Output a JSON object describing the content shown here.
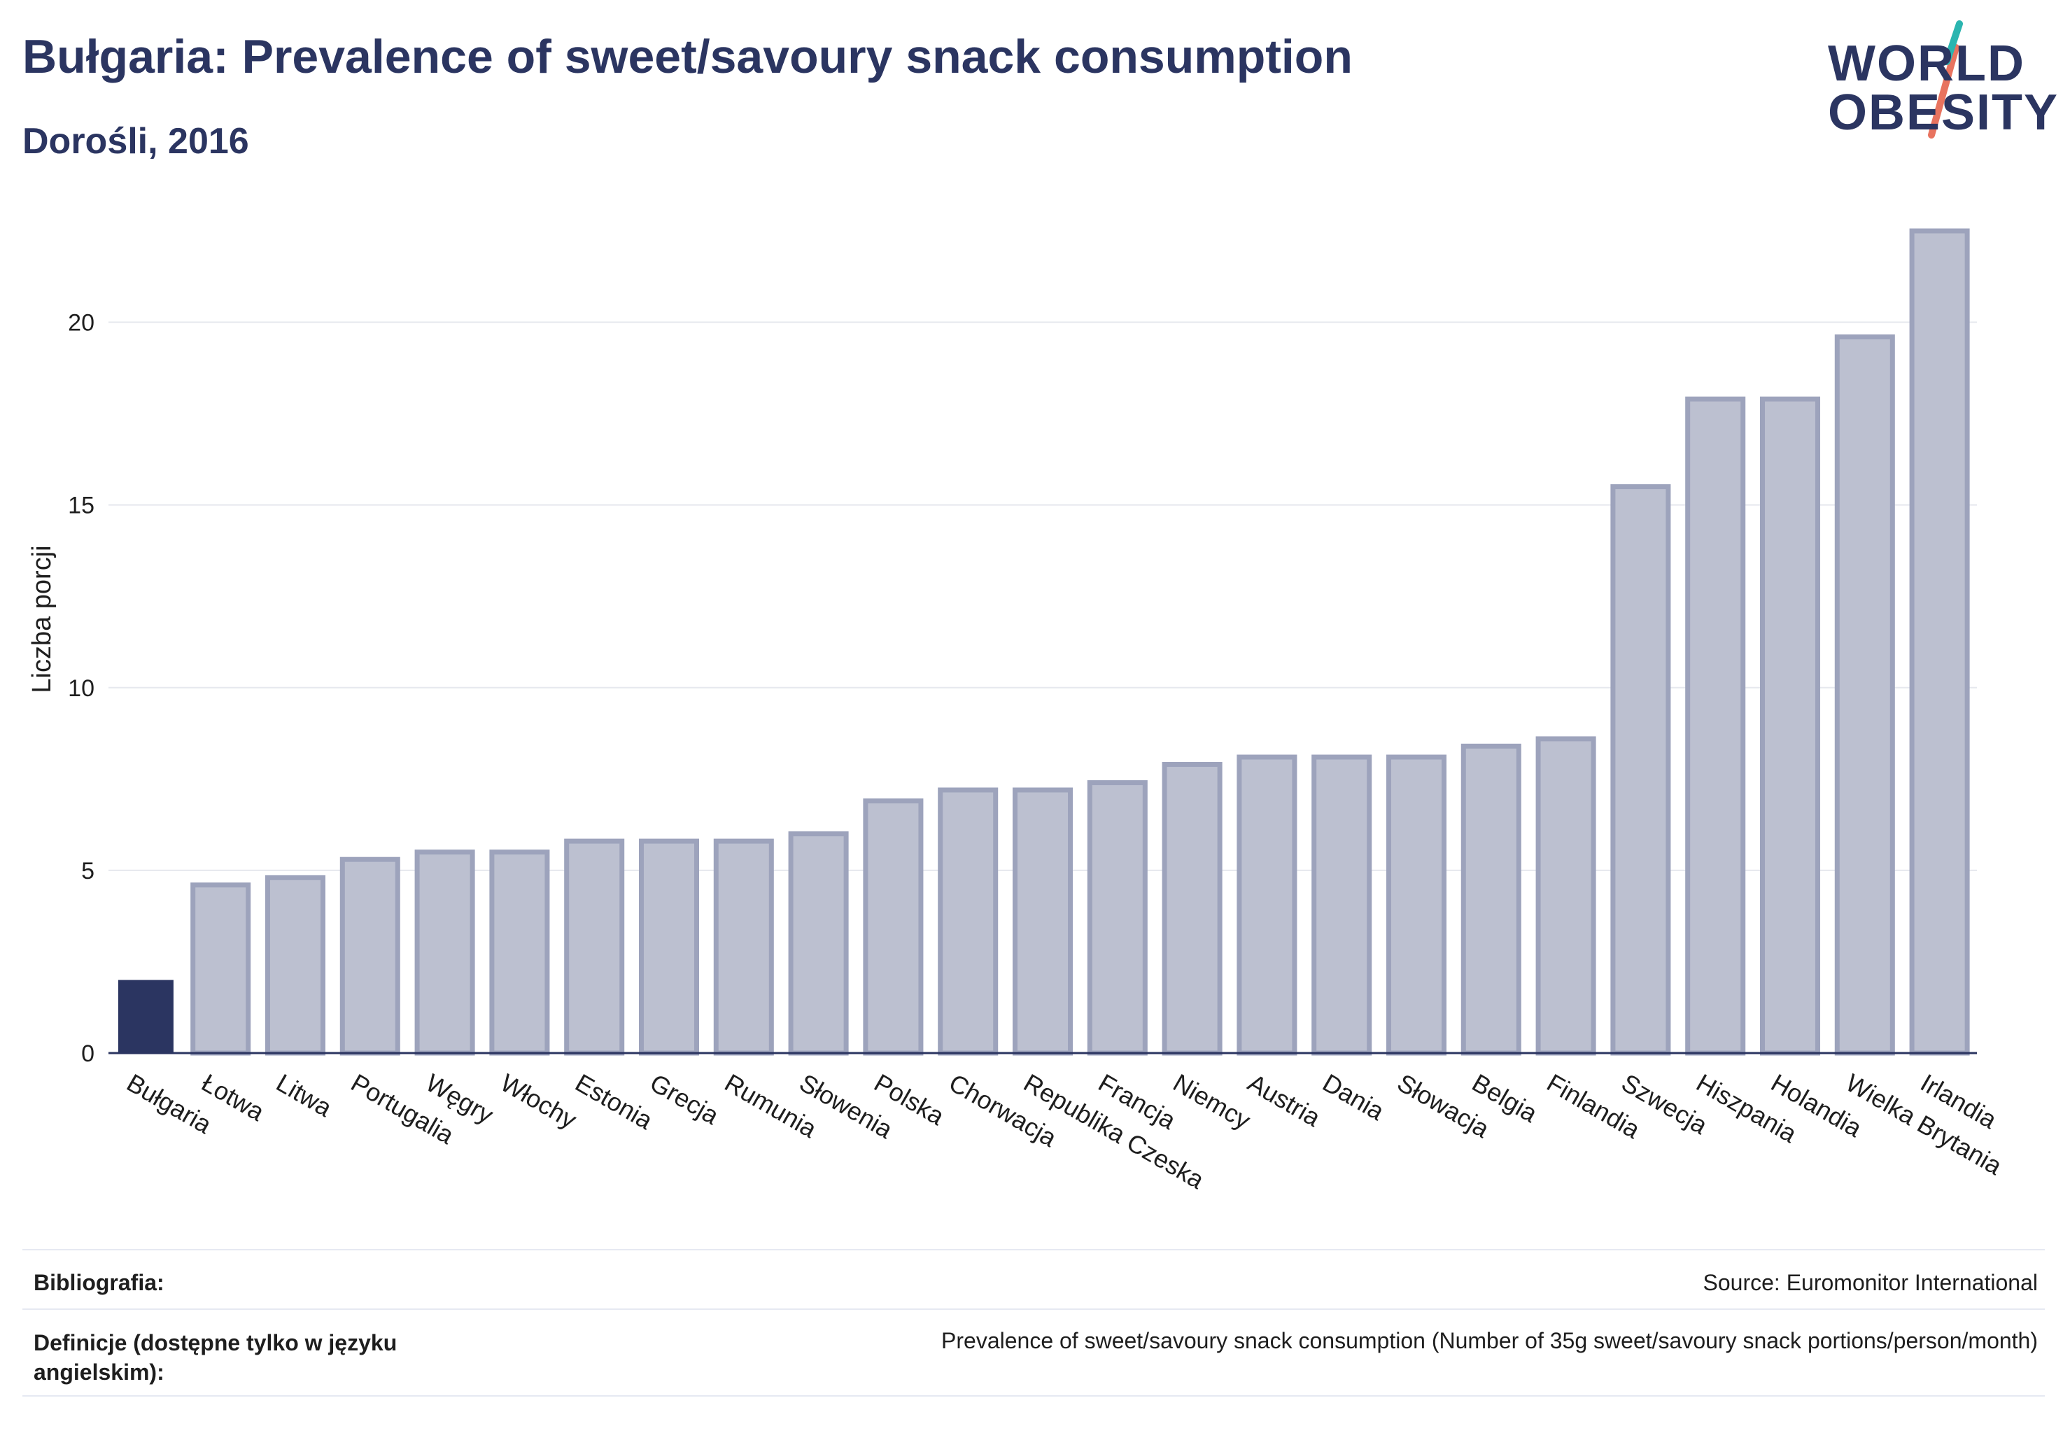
{
  "header": {
    "title": "Bułgaria: Prevalence of sweet/savoury snack consumption",
    "subtitle": "Dorośli, 2016"
  },
  "logo": {
    "line1": "WORLD",
    "line2": "OBESITY"
  },
  "colors": {
    "highlight": "#2b3561",
    "bar": "#bcc0d0",
    "bar_stroke": "#9da3bc",
    "grid": "#e6e8ee",
    "axis": "#2b3561"
  },
  "chart_data": {
    "type": "bar",
    "categories": [
      "Bułgaria",
      "Łotwa",
      "Litwa",
      "Portugalia",
      "Węgry",
      "Włochy",
      "Estonia",
      "Grecja",
      "Rumunia",
      "Słowenia",
      "Polska",
      "Chorwacja",
      "Republika Czeska",
      "Francja",
      "Niemcy",
      "Austria",
      "Dania",
      "Słowacja",
      "Belgia",
      "Finlandia",
      "Szwecja",
      "Hiszpania",
      "Holandia",
      "Wielka Brytania",
      "Irlandia"
    ],
    "values": [
      2.0,
      4.6,
      4.8,
      5.3,
      5.5,
      5.5,
      5.8,
      5.8,
      5.8,
      6.0,
      6.9,
      7.2,
      7.2,
      7.4,
      7.9,
      8.1,
      8.1,
      8.1,
      8.4,
      8.6,
      15.5,
      17.9,
      17.9,
      19.6,
      22.5
    ],
    "highlight_index": 0,
    "title": "Bułgaria: Prevalence of sweet/savoury snack consumption",
    "xlabel": "",
    "ylabel": "Liczba porcji",
    "yticks": [
      0,
      5,
      10,
      15,
      20
    ],
    "ylim": [
      0,
      22.5
    ],
    "grid": true
  },
  "footer": {
    "bibliography_label": "Bibliografia:",
    "bibliography_value": "Source: Euromonitor International",
    "definitions_label": "Definicje (dostępne tylko w języku angielskim):",
    "definitions_value": "Prevalence of sweet/savoury snack consumption (Number of 35g sweet/savoury snack portions/person/month)"
  }
}
